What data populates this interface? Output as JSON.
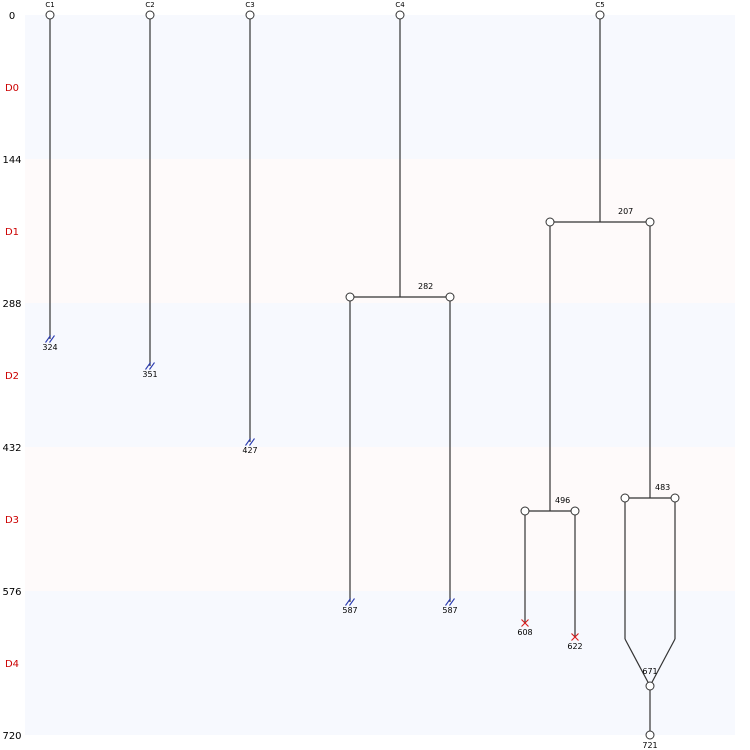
{
  "colors": {
    "band_even": "#f7f9fe",
    "band_odd": "#fefafa",
    "day_label": "#cc0000",
    "line": "#333333",
    "censor": "#2a3bb0",
    "death": "#d81b1b"
  },
  "axis_ticks": [
    {
      "value": 0,
      "label": "0"
    },
    {
      "value": 144,
      "label": "144"
    },
    {
      "value": 288,
      "label": "288"
    },
    {
      "value": 432,
      "label": "432"
    },
    {
      "value": 576,
      "label": "576"
    },
    {
      "value": 720,
      "label": "720"
    }
  ],
  "day_labels": [
    {
      "label": "D0",
      "mid": 72
    },
    {
      "label": "D1",
      "mid": 216
    },
    {
      "label": "D2",
      "mid": 360
    },
    {
      "label": "D3",
      "mid": 504
    },
    {
      "label": "D4",
      "mid": 648
    }
  ],
  "columns": [
    "C1",
    "C2",
    "C3",
    "C4",
    "C5"
  ],
  "chart_data": {
    "type": "lineage-tree",
    "time_range": [
      0,
      720
    ],
    "roots": [
      {
        "label": "C1",
        "end": 324,
        "end_label": "324",
        "fate": "censored"
      },
      {
        "label": "C2",
        "end": 351,
        "end_label": "351",
        "fate": "censored"
      },
      {
        "label": "C3",
        "end": 427,
        "end_label": "427",
        "fate": "censored"
      },
      {
        "label": "C4",
        "division": 282,
        "division_label": "282",
        "children": [
          {
            "end": 587,
            "end_label": "587",
            "fate": "censored"
          },
          {
            "end": 587,
            "end_label": "587",
            "fate": "censored"
          }
        ]
      },
      {
        "label": "C5",
        "division": 207,
        "division_label": "207",
        "children": [
          {
            "division": 496,
            "division_label": "496",
            "children": [
              {
                "end": 608,
                "end_label": "608",
                "fate": "death"
              },
              {
                "end": 622,
                "end_label": "622",
                "fate": "death"
              }
            ]
          },
          {
            "division": 483,
            "division_label": "483",
            "fusion": 671,
            "fusion_label": "671",
            "end": 721,
            "end_label": "721",
            "fate": "alive"
          }
        ]
      }
    ]
  }
}
